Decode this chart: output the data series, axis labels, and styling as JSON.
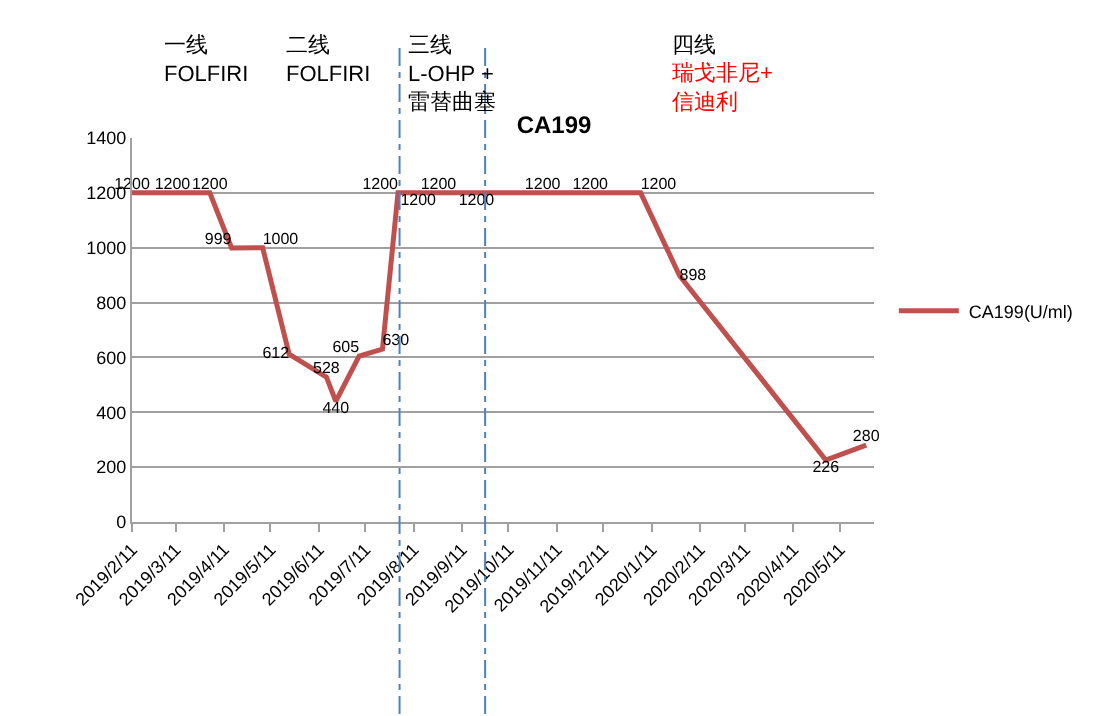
{
  "chart_data": {
    "type": "line",
    "title": "CA199",
    "x": [
      "2019-02-11",
      "2019-03-09",
      "2019-04-02",
      "2019-04-16",
      "2019-05-06",
      "2019-05-23",
      "2019-06-16",
      "2019-06-22",
      "2019-07-07",
      "2019-07-22",
      "2019-08-01",
      "2019-08-14",
      "2019-08-27",
      "2019-09-09",
      "2019-11-02",
      "2019-12-14",
      "2020-01-04",
      "2020-01-29",
      "2020-05-02",
      "2020-05-28"
    ],
    "series": [
      {
        "name": "CA199(U/ml)",
        "color": "#c0504d",
        "values": [
          1200,
          1200,
          1200,
          999,
          1000,
          612,
          528,
          440,
          605,
          630,
          1200,
          1200,
          1200,
          1200,
          1200,
          1200,
          1200,
          898,
          226,
          280
        ]
      }
    ],
    "data_labels": true,
    "marker": "none",
    "line_style": "solid",
    "xlim": [
      "2019-02-11",
      "2020-06-02"
    ],
    "xticks": [
      {
        "value": "2019-02-11",
        "label": "2019/2/11"
      },
      {
        "value": "2019-03-11",
        "label": "2019/3/11"
      },
      {
        "value": "2019-04-11",
        "label": "2019/4/11"
      },
      {
        "value": "2019-05-11",
        "label": "2019/5/11"
      },
      {
        "value": "2019-06-11",
        "label": "2019/6/11"
      },
      {
        "value": "2019-07-11",
        "label": "2019/7/11"
      },
      {
        "value": "2019-08-11",
        "label": "2019/8/11"
      },
      {
        "value": "2019-09-11",
        "label": "2019/9/11"
      },
      {
        "value": "2019-10-11",
        "label": "2019/10/11"
      },
      {
        "value": "2019-11-11",
        "label": "2019/11/11"
      },
      {
        "value": "2019-12-11",
        "label": "2019/12/11"
      },
      {
        "value": "2020-01-11",
        "label": "2020/1/11"
      },
      {
        "value": "2020-02-11",
        "label": "2020/2/11"
      },
      {
        "value": "2020-03-11",
        "label": "2020/3/11"
      },
      {
        "value": "2020-04-11",
        "label": "2020/4/11"
      },
      {
        "value": "2020-05-11",
        "label": "2020/5/11"
      }
    ],
    "ylim": [
      0,
      1400
    ],
    "yticks": [
      0,
      200,
      400,
      600,
      800,
      1000,
      1200,
      1400
    ],
    "grid": "y",
    "legend": "right",
    "ref_lines": [
      {
        "axis": "x",
        "value": "2019-08-02",
        "color": "#4f81bd",
        "line_style": "dashed"
      },
      {
        "axis": "x",
        "value": "2019-09-26",
        "color": "#4f81bd",
        "line_style": "dashed"
      }
    ],
    "annotations": [
      "一线\nFOLFIRI",
      "二线\nFOLFIRI",
      "三线\nL-OHP +\n雷替曲塞",
      "四线",
      "瑞戈非尼+\n信迪利"
    ]
  }
}
